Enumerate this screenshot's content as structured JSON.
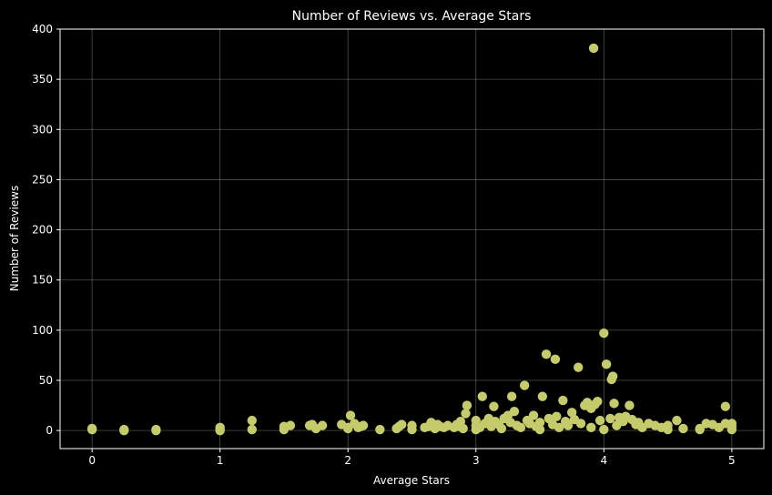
{
  "chart_data": {
    "type": "scatter",
    "title": "Number of Reviews vs. Average Stars",
    "xlabel": "Average Stars",
    "ylabel": "Number of Reviews",
    "xlim": [
      -0.25,
      5.25
    ],
    "ylim": [
      -18,
      400
    ],
    "xticks": [
      0,
      1,
      2,
      3,
      4,
      5
    ],
    "yticks": [
      0,
      50,
      100,
      150,
      200,
      250,
      300,
      350,
      400
    ],
    "grid": true,
    "marker_color": "#c5cb6b",
    "background": "#000000",
    "points": [
      [
        0,
        1
      ],
      [
        0,
        2
      ],
      [
        0.25,
        0
      ],
      [
        0.25,
        1
      ],
      [
        0.5,
        0
      ],
      [
        0.5,
        1
      ],
      [
        1,
        0
      ],
      [
        1,
        1
      ],
      [
        1,
        3
      ],
      [
        1.25,
        1
      ],
      [
        1.25,
        10
      ],
      [
        1.5,
        1
      ],
      [
        1.5,
        4
      ],
      [
        1.55,
        5
      ],
      [
        1.7,
        5
      ],
      [
        1.72,
        6
      ],
      [
        1.75,
        2
      ],
      [
        1.8,
        5
      ],
      [
        1.95,
        6
      ],
      [
        2,
        2
      ],
      [
        2,
        3
      ],
      [
        2.02,
        15
      ],
      [
        2.05,
        7
      ],
      [
        2.08,
        3
      ],
      [
        2.1,
        4
      ],
      [
        2.12,
        5
      ],
      [
        2.25,
        1
      ],
      [
        2.38,
        2
      ],
      [
        2.4,
        4
      ],
      [
        2.42,
        6
      ],
      [
        2.5,
        1
      ],
      [
        2.5,
        5
      ],
      [
        2.6,
        3
      ],
      [
        2.63,
        4
      ],
      [
        2.65,
        8
      ],
      [
        2.68,
        2
      ],
      [
        2.7,
        6
      ],
      [
        2.72,
        4
      ],
      [
        2.75,
        3
      ],
      [
        2.78,
        5
      ],
      [
        2.83,
        3
      ],
      [
        2.85,
        6
      ],
      [
        2.87,
        4
      ],
      [
        2.88,
        9
      ],
      [
        2.9,
        2
      ],
      [
        2.92,
        17
      ],
      [
        2.93,
        25
      ],
      [
        3,
        1
      ],
      [
        3,
        5
      ],
      [
        3,
        10
      ],
      [
        3.03,
        3
      ],
      [
        3.05,
        34
      ],
      [
        3.07,
        7
      ],
      [
        3.1,
        12
      ],
      [
        3.12,
        4
      ],
      [
        3.14,
        24
      ],
      [
        3.15,
        9
      ],
      [
        3.18,
        6
      ],
      [
        3.2,
        2
      ],
      [
        3.22,
        12
      ],
      [
        3.25,
        15
      ],
      [
        3.27,
        8
      ],
      [
        3.28,
        34
      ],
      [
        3.3,
        19
      ],
      [
        3.32,
        5
      ],
      [
        3.35,
        3
      ],
      [
        3.38,
        45
      ],
      [
        3.4,
        10
      ],
      [
        3.42,
        7
      ],
      [
        3.45,
        15
      ],
      [
        3.47,
        4
      ],
      [
        3.5,
        1
      ],
      [
        3.5,
        8
      ],
      [
        3.52,
        34
      ],
      [
        3.55,
        76
      ],
      [
        3.57,
        12
      ],
      [
        3.6,
        6
      ],
      [
        3.62,
        71
      ],
      [
        3.63,
        14
      ],
      [
        3.65,
        3
      ],
      [
        3.68,
        30
      ],
      [
        3.7,
        9
      ],
      [
        3.72,
        5
      ],
      [
        3.75,
        18
      ],
      [
        3.77,
        11
      ],
      [
        3.8,
        63
      ],
      [
        3.82,
        7
      ],
      [
        3.85,
        25
      ],
      [
        3.87,
        28
      ],
      [
        3.9,
        3
      ],
      [
        3.9,
        22
      ],
      [
        3.92,
        381
      ],
      [
        3.93,
        26
      ],
      [
        3.95,
        29
      ],
      [
        3.97,
        10
      ],
      [
        4,
        1
      ],
      [
        4,
        97
      ],
      [
        4.02,
        66
      ],
      [
        4.05,
        12
      ],
      [
        4.06,
        51
      ],
      [
        4.07,
        54
      ],
      [
        4.08,
        27
      ],
      [
        4.1,
        5
      ],
      [
        4.12,
        13
      ],
      [
        4.15,
        9
      ],
      [
        4.17,
        14
      ],
      [
        4.2,
        25
      ],
      [
        4.22,
        11
      ],
      [
        4.25,
        6
      ],
      [
        4.27,
        8
      ],
      [
        4.3,
        3
      ],
      [
        4.35,
        7
      ],
      [
        4.4,
        5
      ],
      [
        4.45,
        3
      ],
      [
        4.5,
        1
      ],
      [
        4.5,
        5
      ],
      [
        4.57,
        10
      ],
      [
        4.62,
        2
      ],
      [
        4.75,
        1
      ],
      [
        4.75,
        2
      ],
      [
        4.8,
        7
      ],
      [
        4.85,
        6
      ],
      [
        4.9,
        3
      ],
      [
        4.95,
        7
      ],
      [
        4.95,
        24
      ],
      [
        5,
        1
      ],
      [
        5,
        4
      ],
      [
        5,
        7
      ]
    ]
  }
}
